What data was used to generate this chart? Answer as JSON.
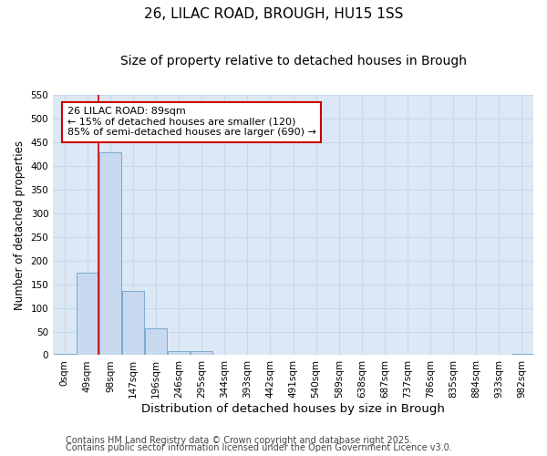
{
  "title": "26, LILAC ROAD, BROUGH, HU15 1SS",
  "subtitle": "Size of property relative to detached houses in Brough",
  "xlabel": "Distribution of detached houses by size in Brough",
  "ylabel": "Number of detached properties",
  "categories": [
    "0sqm",
    "49sqm",
    "98sqm",
    "147sqm",
    "196sqm",
    "246sqm",
    "295sqm",
    "344sqm",
    "393sqm",
    "442sqm",
    "491sqm",
    "540sqm",
    "589sqm",
    "638sqm",
    "687sqm",
    "737sqm",
    "786sqm",
    "835sqm",
    "884sqm",
    "933sqm",
    "982sqm"
  ],
  "values": [
    3,
    175,
    430,
    135,
    57,
    8,
    8,
    0,
    0,
    0,
    0,
    0,
    0,
    0,
    0,
    0,
    0,
    0,
    0,
    0,
    3
  ],
  "bar_color": "#c8d8ee",
  "bar_edge_color": "#7aaad0",
  "grid_color": "#c8d8ee",
  "plot_bg_color": "#dce8f5",
  "fig_bg_color": "#ffffff",
  "property_line_x": 1.5,
  "annotation_text": "26 LILAC ROAD: 89sqm\n← 15% of detached houses are smaller (120)\n85% of semi-detached houses are larger (690) →",
  "annotation_box_color": "#cc0000",
  "ylim": [
    0,
    550
  ],
  "yticks": [
    0,
    50,
    100,
    150,
    200,
    250,
    300,
    350,
    400,
    450,
    500,
    550
  ],
  "footer_line1": "Contains HM Land Registry data © Crown copyright and database right 2025.",
  "footer_line2": "Contains public sector information licensed under the Open Government Licence v3.0.",
  "title_fontsize": 11,
  "subtitle_fontsize": 10,
  "xlabel_fontsize": 9.5,
  "ylabel_fontsize": 8.5,
  "tick_fontsize": 7.5,
  "annotation_fontsize": 8,
  "footer_fontsize": 7
}
